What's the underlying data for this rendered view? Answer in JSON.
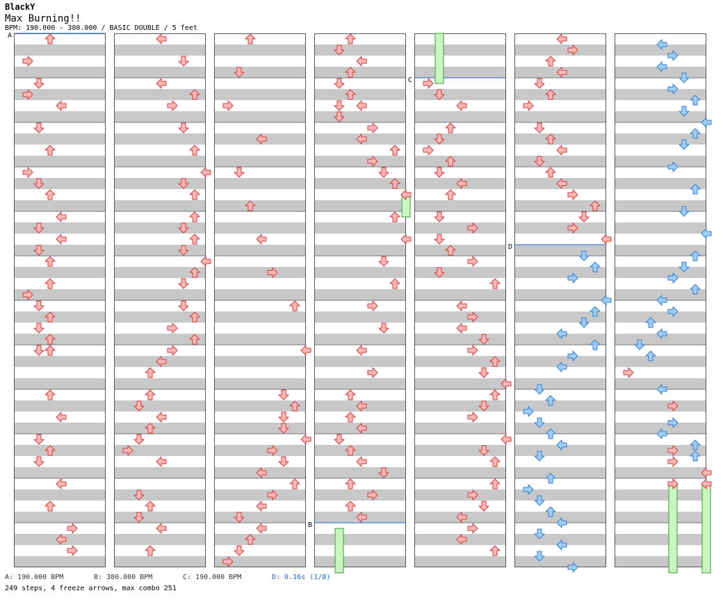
{
  "song": {
    "artist": "BlackY",
    "title": "Max Burning!!",
    "info": "BPM: 190.000 - 380.000 / BASIC DOUBLE / 5 feet"
  },
  "markers": {
    "a": {
      "label": "A",
      "text": "A: 190.000 BPM"
    },
    "b": {
      "label": "B",
      "text": "B: 380.000 BPM"
    },
    "c": {
      "label": "C",
      "text": "C: 190.000 BPM"
    },
    "d": {
      "label": "D",
      "text": "D: 0.16s (1/8)"
    }
  },
  "summary": "249 steps, 4 freeze arrows, max combo 251",
  "colors": {
    "red_fill": "#ffb8b8",
    "red_stroke": "#d63a3a",
    "blue_fill": "#9fcdf6",
    "blue_stroke": "#2f7fd0",
    "freeze_fill": "#c8f5c0",
    "freeze_stroke": "#3a9a3a",
    "band": "#c8c8c8",
    "marker_line": "#2266cc"
  }
}
